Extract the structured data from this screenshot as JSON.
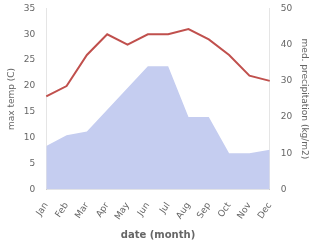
{
  "chart_data": {
    "type": "line",
    "categories": [
      "Jan",
      "Feb",
      "Mar",
      "Apr",
      "May",
      "Jun",
      "Jul",
      "Aug",
      "Sep",
      "Oct",
      "Nov",
      "Dec"
    ],
    "series": [
      {
        "type": "area",
        "color": "#c5cdf0",
        "axis": "y2",
        "values": [
          12,
          15,
          16,
          22,
          28,
          34,
          34,
          20,
          20,
          10,
          10,
          11
        ]
      },
      {
        "type": "line",
        "color": "#c0504d",
        "values": [
          18,
          20,
          26,
          30,
          28,
          30,
          30,
          31,
          29,
          26,
          22,
          21
        ]
      }
    ],
    "xlabel": "date (month)",
    "ylabel": "max temp (C)",
    "y2label": "med. precipitation (kg/m2)",
    "ylim": [
      0,
      35
    ],
    "yticks": [
      0,
      5,
      10,
      15,
      20,
      25,
      30,
      35
    ],
    "y2lim": [
      0,
      50
    ],
    "y2ticks": [
      0,
      10,
      20,
      30,
      40,
      50
    ],
    "grid": false
  }
}
